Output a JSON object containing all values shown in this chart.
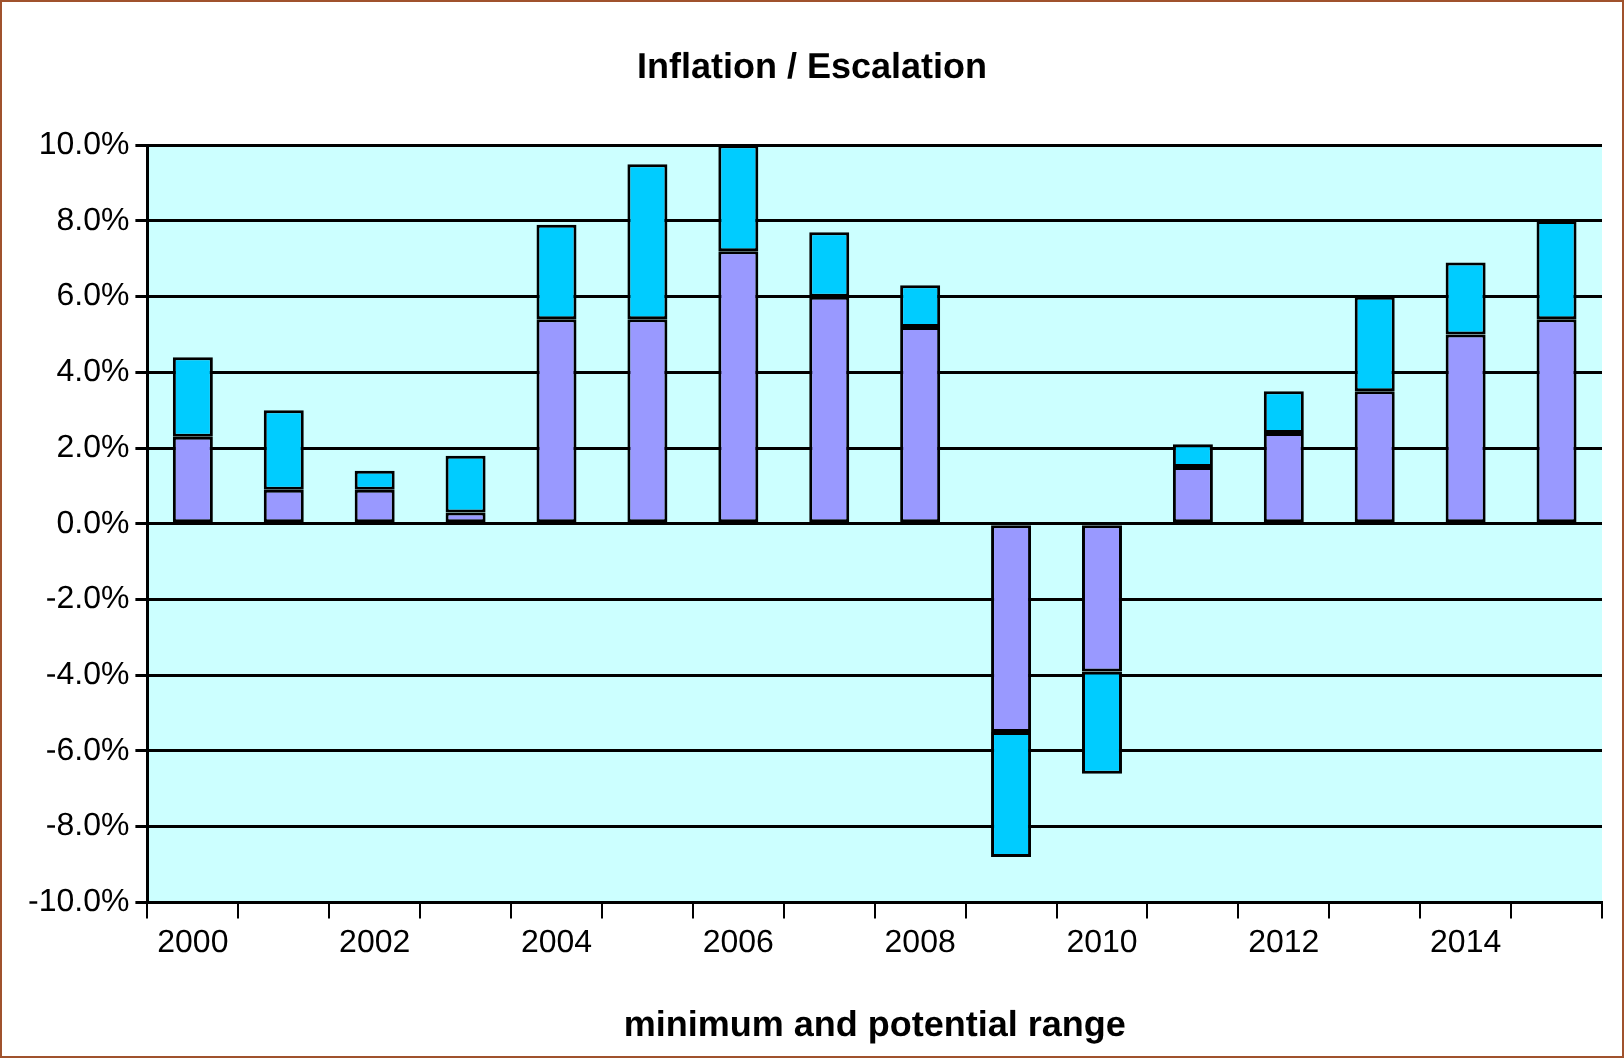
{
  "chart_data": {
    "type": "bar",
    "title": "Inflation / Escalation",
    "xlabel": "minimum and potential range",
    "categories": [
      "2000",
      null,
      "2002",
      null,
      "2004",
      null,
      "2006",
      null,
      "2008",
      null,
      "2010",
      null,
      "2012",
      null,
      "2014",
      null
    ],
    "stacked": true,
    "series": [
      {
        "color": "#9999ff",
        "values": [
          2.3,
          0.9,
          0.9,
          0.3,
          5.4,
          5.4,
          7.2,
          6.0,
          5.2,
          -5.5,
          -3.9,
          1.5,
          2.4,
          3.5,
          5.0,
          5.4
        ]
      },
      {
        "color": "#00ccff",
        "values": [
          2.1,
          2.1,
          0.5,
          1.5,
          2.5,
          4.1,
          2.8,
          1.7,
          1.1,
          -3.3,
          -2.7,
          0.6,
          1.1,
          2.5,
          1.9,
          2.6
        ]
      }
    ],
    "ylim": [
      -10,
      10
    ],
    "yticks": [
      {
        "value": -10,
        "label": "-10.0%"
      },
      {
        "value": -8,
        "label": "-8.0%"
      },
      {
        "value": -6,
        "label": "-6.0%"
      },
      {
        "value": -4,
        "label": "-4.0%"
      },
      {
        "value": -2,
        "label": "-2.0%"
      },
      {
        "value": 0,
        "label": "0.0%"
      },
      {
        "value": 2,
        "label": "2.0%"
      },
      {
        "value": 4,
        "label": "4.0%"
      },
      {
        "value": 6,
        "label": "6.0%"
      },
      {
        "value": 8,
        "label": "8.0%"
      },
      {
        "value": 10,
        "label": "10.0%"
      }
    ],
    "grid": "y",
    "legend": false
  }
}
